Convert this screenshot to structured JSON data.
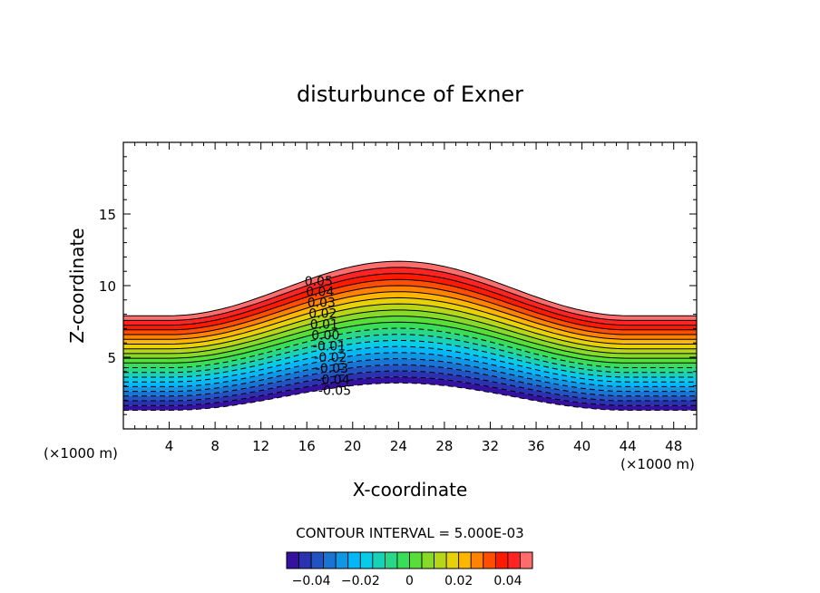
{
  "chart_data": {
    "type": "contour",
    "title": "disturbunce of Exner",
    "xlabel": "X-coordinate",
    "ylabel": "Z-coordinate",
    "x_unit_label": "(×1000 m)",
    "x_unit_label_right": "(×1000 m)",
    "xlim": [
      0,
      50
    ],
    "ylim": [
      0,
      20
    ],
    "x_ticks": [
      4,
      8,
      12,
      16,
      20,
      24,
      28,
      32,
      36,
      40,
      44,
      48
    ],
    "y_ticks": [
      5,
      10,
      15
    ],
    "contour_interval_text": "CONTOUR INTERVAL = 5.000E-03",
    "contour_interval": 0.005,
    "value_range": [
      -0.05,
      0.05
    ],
    "terrain_peak_x": 24,
    "band_bottom_min_z": 1.3,
    "band_bottom_max_z": 3.2,
    "band_top_min_z": 7.9,
    "band_top_max_z": 11.7,
    "line_labels": [
      "0.05",
      "0.04",
      "0.03",
      "0.02",
      "0.01",
      "0.00",
      "-0.01",
      "-0.02",
      "-0.03",
      "-0.04",
      "-0.05"
    ],
    "colorbar": {
      "ticks": [
        -0.04,
        -0.02,
        0,
        0.02,
        0.04
      ],
      "tick_labels": [
        "−0.04",
        "−0.02",
        "0",
        "0.02",
        "0.04"
      ]
    },
    "colors": {
      "low": "#3a0096",
      "mid_low": "#00c8ff",
      "mid": "#40e040",
      "mid_high": "#ffd000",
      "high": "#ff0000",
      "top": "#ff9090"
    }
  }
}
